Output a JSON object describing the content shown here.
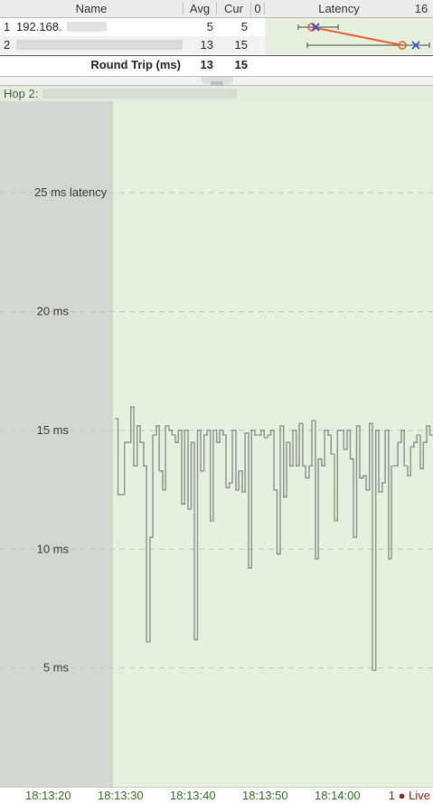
{
  "table": {
    "headers": {
      "name": "Name",
      "avg": "Avg",
      "cur": "Cur",
      "latency_min": "0",
      "latency": "Latency",
      "latency_max": "16"
    },
    "rows": [
      {
        "index": "1",
        "name": "192.168.",
        "avg": "5",
        "cur": "5"
      },
      {
        "index": "2",
        "name": "",
        "avg": "13",
        "cur": "15"
      }
    ],
    "round_trip": {
      "label": "Round Trip (ms)",
      "avg": "13",
      "cur": "15"
    }
  },
  "hop_label": "Hop 2:",
  "time_axis": {
    "labels": [
      "18:13:20",
      "18:13:30",
      "18:13:40",
      "18:13:50",
      "18:14:00"
    ],
    "live_count": "1",
    "live_label": "Live"
  },
  "colors": {
    "plot_bg": "#e6f0de",
    "history_bg": "#d4d6d1",
    "grid": "#c4c9bf",
    "line": "#2b2b2b",
    "avg_marker": "#e5602f",
    "cur_marker": "#3a4fcf"
  },
  "chart_data": {
    "type": "line",
    "title": "",
    "xlabel": "",
    "ylabel": "",
    "ytick_labels": [
      "5 ms",
      "10 ms",
      "15 ms",
      "20 ms",
      "25 ms latency"
    ],
    "yticks": [
      5,
      10,
      15,
      20,
      25
    ],
    "ylim": [
      0,
      29.5
    ],
    "grid": true,
    "series": [
      {
        "values": [
          15.5,
          12.3,
          12.3,
          14.5,
          14.5,
          16.0,
          13.5,
          15.2,
          14.5,
          13.5,
          6.1,
          10.5,
          14.8,
          15.2,
          13.3,
          12.5,
          15.2,
          15.0,
          14.8,
          14.5,
          15.0,
          11.9,
          15.0,
          11.7,
          14.5,
          6.2,
          15.0,
          13.3,
          14.8,
          15.0,
          11.2,
          15.0,
          14.5,
          15.0,
          14.8,
          12.6,
          12.8,
          15.0,
          12.5,
          13.3,
          12.4,
          14.9,
          9.2,
          15.0,
          14.8,
          14.8,
          15.0,
          14.7,
          14.8,
          15.0,
          12.5,
          9.8,
          15.2,
          12.2,
          14.5,
          13.5,
          15.0,
          13.5,
          15.3,
          13.5,
          13.0,
          13.5,
          15.4,
          9.6,
          13.8,
          13.5,
          15.0,
          14.8,
          14.0,
          11.2,
          15.0,
          15.0,
          14.2,
          15.0,
          13.8,
          10.5,
          15.2,
          13.0,
          13.1,
          12.5,
          15.3,
          4.9,
          15.0,
          12.4,
          12.8,
          15.0,
          9.6,
          13.5,
          13.5,
          14.5,
          15.0,
          13.5,
          13.1,
          14.3,
          14.5,
          14.8,
          13.4,
          14.5,
          15.2,
          14.8
        ]
      }
    ]
  }
}
